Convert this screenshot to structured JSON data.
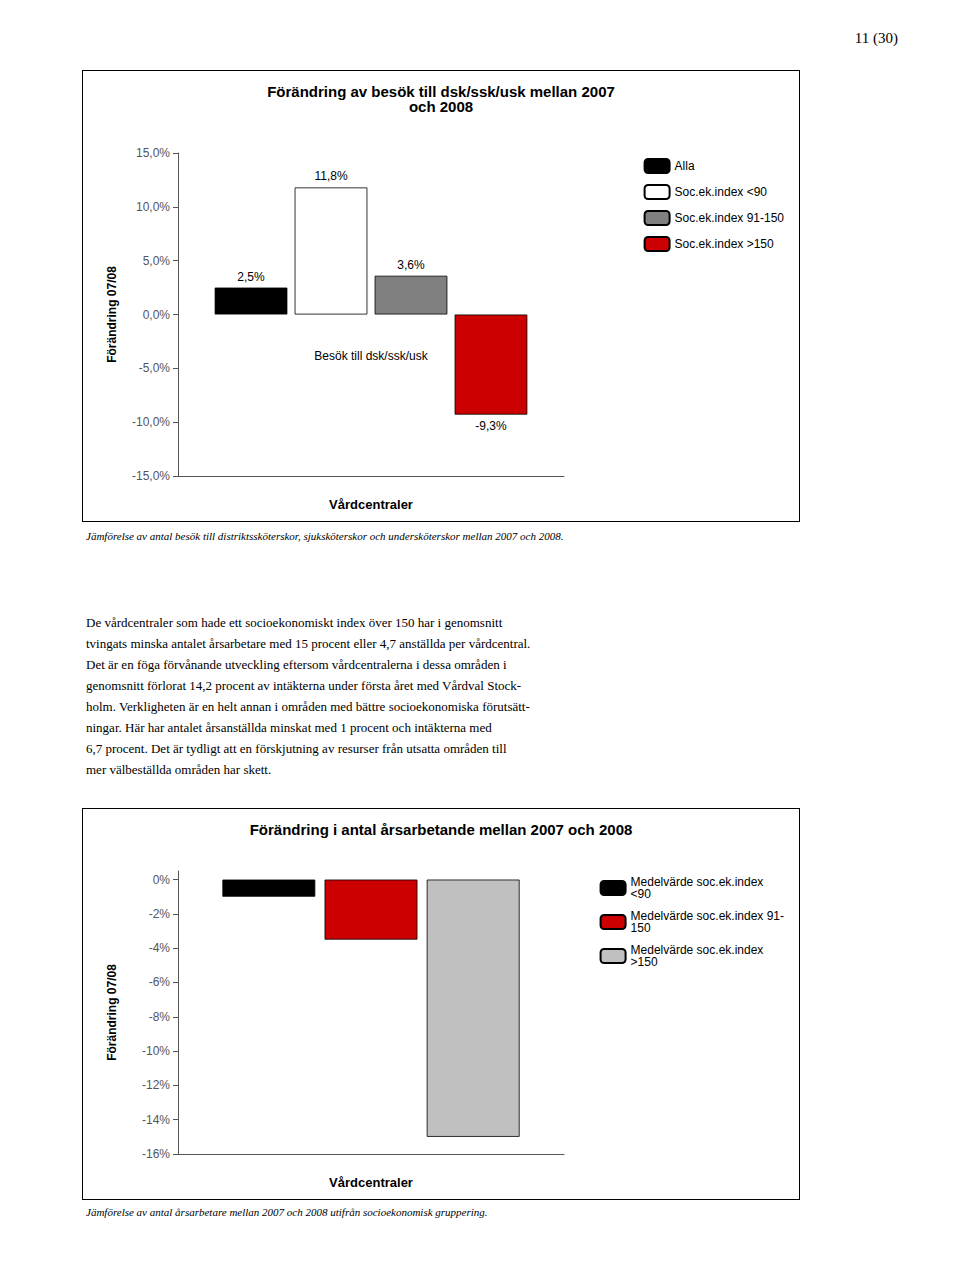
{
  "page_text": "11 (30)",
  "body_text": [
    "De vårdcentraler som hade ett socioekonomiskt index över 150 har i genomsnitt",
    "tvingats minska antalet årsarbetare med 15 procent eller 4,7 anställda per vårdcentral.",
    "Det är en föga förvånande utveckling eftersom vårdcentralerna i dessa områden i",
    "genomsnitt förlorat 14,2 procent av intäkterna under första året med Vårdval Stock-",
    "holm. Verkligheten är en helt annan i områden med bättre socioekonomiska förutsätt-",
    "ningar. Här har antalet årsanställda minskat med 1 procent och intäkterna med",
    "6,7 procent. Det är tydligt att en förskjutning av resurser från utsatta områden till",
    "mer välbeställda områden har skett."
  ],
  "chart_data": [
    {
      "type": "bar",
      "title": "Förändring av besök till dsk/ssk/usk mellan 2007\noch 2008",
      "xlabel": "Vårdcentraler",
      "ylabel": "Förändring 07/08",
      "categories": [
        null
      ],
      "series": [
        {
          "name": "Alla",
          "color": "#000000",
          "values": [
            2.5
          ],
          "value_labels": [
            "2,5%"
          ]
        },
        {
          "name": "Soc.ek.index <90",
          "color": "#ffffff",
          "values": [
            11.8
          ],
          "value_labels": [
            "11,8%"
          ]
        },
        {
          "name": "Soc.ek.index 91-150",
          "color": "#808080",
          "values": [
            3.6
          ],
          "value_labels": [
            "3,6%"
          ]
        },
        {
          "name": "Soc.ek.index >150",
          "color": "#cc0000",
          "values": [
            -9.3
          ],
          "value_labels": [
            "-9,3%"
          ]
        }
      ],
      "ylim": [
        -15.0,
        15.0
      ],
      "yticks": [
        {
          "value": -15.0,
          "label": "-15,0%"
        },
        {
          "value": -10.0,
          "label": "-10,0%"
        },
        {
          "value": -5.0,
          "label": "-5,0%"
        },
        {
          "value": 0.0,
          "label": "0,0%"
        },
        {
          "value": 5.0,
          "label": "5,0%"
        },
        {
          "value": 10.0,
          "label": "10,0%"
        },
        {
          "value": 15.0,
          "label": "15,0%"
        }
      ],
      "grid": false,
      "legend": "right",
      "data_labels": true,
      "annotations": [
        "Besök till dsk/ssk/usk"
      ],
      "caption": "Jämförelse av antal besök till distriktssköterskor, sjuksköterskor och undersköterskor mellan 2007 och 2008."
    },
    {
      "type": "bar",
      "title": "Förändring i antal årsarbetande mellan 2007 och 2008",
      "xlabel": "Vårdcentraler",
      "ylabel": "Förändring 07/08",
      "categories": [
        null
      ],
      "series": [
        {
          "name": "Medelvärde soc.ek.index\n<90",
          "color": "#000000",
          "values": [
            -1.0
          ]
        },
        {
          "name": "Medelvärde soc.ek.index 91-\n150",
          "color": "#cc0000",
          "values": [
            -3.5
          ]
        },
        {
          "name": "Medelvärde soc.ek.index\n>150",
          "color": "#c0c0c0",
          "values": [
            -15.0
          ]
        }
      ],
      "ylim": [
        -16.0,
        0.5
      ],
      "yticks": [
        {
          "value": -16.0,
          "label": "-16%"
        },
        {
          "value": -14.0,
          "label": "-14%"
        },
        {
          "value": -12.0,
          "label": "-12%"
        },
        {
          "value": -10.0,
          "label": "-10%"
        },
        {
          "value": -8.0,
          "label": "-8%"
        },
        {
          "value": -6.0,
          "label": "-6%"
        },
        {
          "value": -4.0,
          "label": "-4%"
        },
        {
          "value": -2.0,
          "label": "-2%"
        },
        {
          "value": 0.0,
          "label": "0%"
        }
      ],
      "grid": false,
      "legend": "right",
      "data_labels": false,
      "caption": "Jämförelse av antal årsarbetare mellan 2007 och 2008 utifrån socioekonomisk gruppering."
    }
  ]
}
